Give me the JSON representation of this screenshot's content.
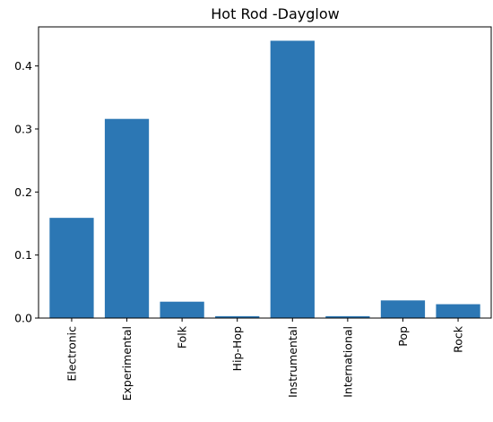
{
  "chart_data": {
    "type": "bar",
    "title": "Hot Rod -Dayglow",
    "xlabel": "",
    "ylabel": "",
    "categories": [
      "Electronic",
      "Experimental",
      "Folk",
      "Hip-Hop",
      "Instrumental",
      "International",
      "Pop",
      "Rock"
    ],
    "values": [
      0.159,
      0.316,
      0.026,
      0.003,
      0.44,
      0.003,
      0.028,
      0.022
    ],
    "ylim": [
      0,
      0.462
    ],
    "yticks": [
      "0.0",
      "0.1",
      "0.2",
      "0.3",
      "0.4"
    ],
    "grid": false,
    "legend": "none",
    "bar_color": "#2c77b4"
  }
}
